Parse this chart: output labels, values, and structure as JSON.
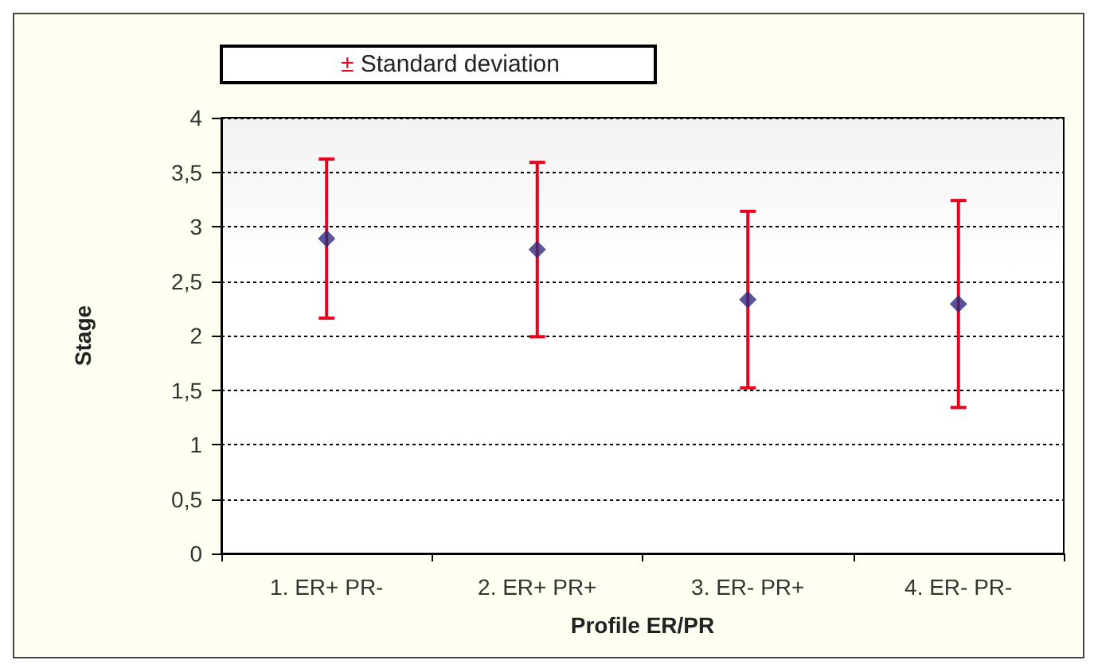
{
  "chart_data": {
    "type": "scatter",
    "xlabel": "Profile ER/PR",
    "ylabel": "Stage",
    "categories": [
      "1. ER+ PR-",
      "2. ER+ PR+",
      "3. ER- PR+",
      "4. ER- PR-"
    ],
    "series": [
      {
        "name": "± Standard deviation",
        "color": "#2e2a7e",
        "values": [
          2.89,
          2.79,
          2.33,
          2.29
        ],
        "errors": [
          0.73,
          0.8,
          0.81,
          0.95
        ]
      }
    ],
    "ylim": [
      0,
      4
    ],
    "yticks": [
      0,
      {
        "value": 0.5,
        "label": "0,5"
      },
      1,
      {
        "value": 1.5,
        "label": "1,5"
      },
      2,
      {
        "value": 2.5,
        "label": "2,5"
      },
      3,
      {
        "value": 3.5,
        "label": "3,5"
      },
      4
    ],
    "grid": "y",
    "legend": "top left",
    "marker": "diamond"
  }
}
